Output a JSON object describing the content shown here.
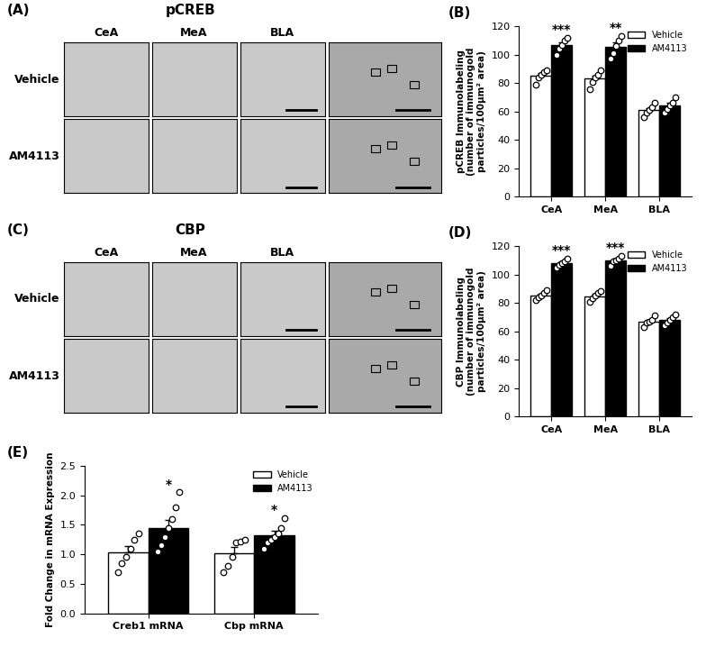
{
  "image_panels": [
    {
      "label": "(A)",
      "title": "pCREB",
      "columns": [
        "CeA",
        "MeA",
        "BLA"
      ],
      "rows": [
        "Vehicle",
        "AM4113"
      ]
    },
    {
      "label": "(C)",
      "title": "CBP",
      "columns": [
        "CeA",
        "MeA",
        "BLA"
      ],
      "rows": [
        "Vehicle",
        "AM4113"
      ]
    }
  ],
  "chart_data": [
    {
      "type": "bar",
      "panel_label": "(B)",
      "ylabel": "pCREB Immunolabeling\n(number of immunogold\nparticles/100µm² area)",
      "categories": [
        "CeA",
        "MeA",
        "BLA"
      ],
      "series": [
        {
          "name": "Vehicle",
          "color": "#ffffff",
          "values": [
            85.2,
            83.2,
            61.0
          ],
          "errors": [
            1.8,
            2.2,
            1.7
          ],
          "points": [
            [
              79,
              84,
              86,
              88,
              89
            ],
            [
              76,
              81,
              84,
              86,
              89
            ],
            [
              56,
              59,
              61,
              63,
              66
            ]
          ],
          "significance": [
            null,
            null,
            null
          ]
        },
        {
          "name": "AM4113",
          "color": "#000000",
          "values": [
            106.6,
            105.4,
            64.2
          ],
          "errors": [
            2.1,
            3.0,
            1.8
          ],
          "points": [
            [
              100,
              104,
              107,
              110,
              112
            ],
            [
              97,
              101,
              106,
              110,
              113
            ],
            [
              59,
              62,
              64,
              66,
              70
            ]
          ],
          "significance": [
            "***",
            "**",
            null
          ]
        }
      ],
      "ylim": [
        0,
        120
      ],
      "yticks": [
        0,
        20,
        40,
        60,
        80,
        100,
        120
      ],
      "legend": "upper right"
    },
    {
      "type": "bar",
      "panel_label": "(D)",
      "ylabel": "CBP Immunolabeling\n(number of immunogold\nparticles/100µm² area)",
      "categories": [
        "CeA",
        "MeA",
        "BLA"
      ],
      "series": [
        {
          "name": "Vehicle",
          "color": "#ffffff",
          "values": [
            85.4,
            84.8,
            67.0
          ],
          "errors": [
            1.2,
            1.3,
            1.3
          ],
          "points": [
            [
              82,
              84,
              85,
              87,
              89
            ],
            [
              81,
              83,
              85,
              87,
              88
            ],
            [
              63,
              66,
              67,
              68,
              71
            ]
          ],
          "significance": [
            null,
            null,
            null
          ]
        },
        {
          "name": "AM4113",
          "color": "#000000",
          "values": [
            108.0,
            109.8,
            68.0
          ],
          "errors": [
            1.0,
            1.1,
            1.4
          ],
          "points": [
            [
              105,
              107,
              108,
              109,
              111
            ],
            [
              106,
              109,
              110,
              111,
              113
            ],
            [
              64,
              66,
              68,
              70,
              72
            ]
          ],
          "significance": [
            "***",
            "***",
            null
          ]
        }
      ],
      "ylim": [
        0,
        120
      ],
      "yticks": [
        0,
        20,
        40,
        60,
        80,
        100,
        120
      ],
      "legend": "upper right"
    },
    {
      "type": "bar",
      "panel_label": "(E)",
      "ylabel": "Fold Change in mRNA Expression",
      "categories": [
        "Creb1 mRNA",
        "Cbp mRNA"
      ],
      "series": [
        {
          "name": "Vehicle",
          "color": "#ffffff",
          "values": [
            1.03,
            1.02
          ],
          "errors": [
            0.11,
            0.1
          ],
          "points": [
            [
              0.7,
              0.85,
              0.95,
              1.1,
              1.25,
              1.35
            ],
            [
              0.7,
              0.8,
              0.95,
              1.2,
              1.22,
              1.25
            ]
          ],
          "significance": [
            null,
            null
          ]
        },
        {
          "name": "AM4113",
          "color": "#000000",
          "values": [
            1.45,
            1.33
          ],
          "errors": [
            0.14,
            0.07
          ],
          "points": [
            [
              1.05,
              1.15,
              1.3,
              1.45,
              1.6,
              1.8,
              2.05
            ],
            [
              1.1,
              1.2,
              1.25,
              1.3,
              1.35,
              1.45,
              1.62
            ]
          ],
          "significance": [
            "*",
            "*"
          ]
        }
      ],
      "ylim": [
        0,
        2.5
      ],
      "yticks": [
        {
          "value": 0,
          "label": "0.0"
        },
        {
          "value": 0.5,
          "label": "0.5"
        },
        {
          "value": 1.0,
          "label": "1.0"
        },
        {
          "value": 1.5,
          "label": "1.5"
        },
        {
          "value": 2.0,
          "label": "2.0"
        },
        {
          "value": 2.5,
          "label": "2.5"
        }
      ],
      "legend": "upper right"
    }
  ]
}
